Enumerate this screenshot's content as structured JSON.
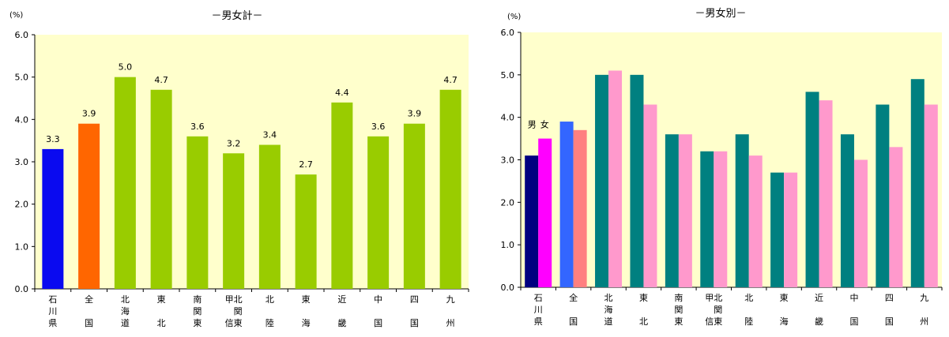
{
  "chart_data": [
    {
      "type": "bar",
      "title": "－男女計－",
      "ylabel_unit": "(%)",
      "ylim": [
        0,
        6
      ],
      "yticks": [
        "0.0",
        "1.0",
        "2.0",
        "3.0",
        "4.0",
        "5.0",
        "6.0"
      ],
      "grid": false,
      "categories": [
        [
          "石",
          "川",
          "県"
        ],
        [
          "全",
          "",
          "国"
        ],
        [
          "北",
          "海",
          "道"
        ],
        [
          "東",
          "",
          "北"
        ],
        [
          "南",
          "関",
          "東"
        ],
        [
          "甲北",
          "　関",
          "信東"
        ],
        [
          "北",
          "",
          "陸"
        ],
        [
          "東",
          "",
          "海"
        ],
        [
          "近",
          "",
          "畿"
        ],
        [
          "中",
          "",
          "国"
        ],
        [
          "四",
          "",
          "国"
        ],
        [
          "九",
          "",
          "州"
        ]
      ],
      "values": [
        3.3,
        3.9,
        5.0,
        4.7,
        3.6,
        3.2,
        3.4,
        2.7,
        4.4,
        3.6,
        3.9,
        4.7
      ],
      "value_labels": [
        "3.3",
        "3.9",
        "5.0",
        "4.7",
        "3.6",
        "3.2",
        "3.4",
        "2.7",
        "4.4",
        "3.6",
        "3.9",
        "4.7"
      ],
      "colors": [
        "#0a0af0",
        "#ff6600",
        "#99cc00",
        "#99cc00",
        "#99cc00",
        "#99cc00",
        "#99cc00",
        "#99cc00",
        "#99cc00",
        "#99cc00",
        "#99cc00",
        "#99cc00"
      ],
      "plot_bg": "#ffffcc"
    },
    {
      "type": "bar",
      "title": "－男女別－",
      "ylabel_unit": "(%)",
      "ylim": [
        0,
        6
      ],
      "yticks": [
        "0.0",
        "1.0",
        "2.0",
        "3.0",
        "4.0",
        "5.0",
        "6.0"
      ],
      "grid": false,
      "categories": [
        [
          "石",
          "川",
          "県"
        ],
        [
          "全",
          "",
          "国"
        ],
        [
          "北",
          "海",
          "道"
        ],
        [
          "東",
          "",
          "北"
        ],
        [
          "南",
          "関",
          "東"
        ],
        [
          "甲北",
          "　関",
          "信東"
        ],
        [
          "北",
          "",
          "陸"
        ],
        [
          "東",
          "",
          "海"
        ],
        [
          "近",
          "",
          "畿"
        ],
        [
          "中",
          "",
          "国"
        ],
        [
          "四",
          "",
          "国"
        ],
        [
          "九",
          "",
          "州"
        ]
      ],
      "series": [
        {
          "name": "男",
          "values": [
            3.1,
            3.9,
            5.0,
            5.0,
            3.6,
            3.2,
            3.6,
            2.7,
            4.6,
            3.6,
            4.3,
            4.9
          ],
          "colors": [
            "#000080",
            "#3366ff",
            "#008080",
            "#008080",
            "#008080",
            "#008080",
            "#008080",
            "#008080",
            "#008080",
            "#008080",
            "#008080",
            "#008080"
          ]
        },
        {
          "name": "女",
          "values": [
            3.5,
            3.7,
            5.1,
            4.3,
            3.6,
            3.2,
            3.1,
            2.7,
            4.4,
            3.0,
            3.3,
            4.3
          ],
          "colors": [
            "#ff00ff",
            "#ff8080",
            "#ff99cc",
            "#ff99cc",
            "#ff99cc",
            "#ff99cc",
            "#ff99cc",
            "#ff99cc",
            "#ff99cc",
            "#ff99cc",
            "#ff99cc",
            "#ff99cc"
          ]
        }
      ],
      "annotation_labels": [
        "男",
        "女"
      ],
      "plot_bg": "#ffffcc"
    }
  ]
}
